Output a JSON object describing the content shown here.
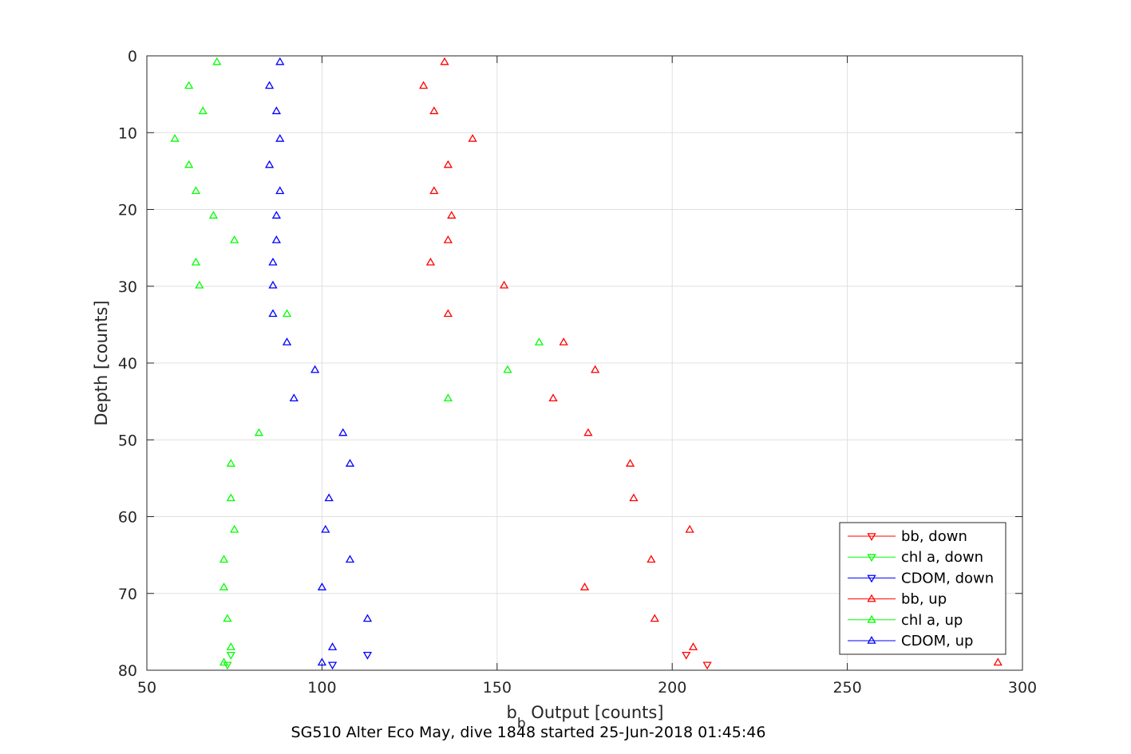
{
  "chart_data": {
    "type": "scatter",
    "xlabel_main": "b",
    "xlabel_sub": "b",
    "xlabel_rest": " Output [counts]",
    "ylabel": "Depth [counts]",
    "caption": "SG510 Alter Eco May, dive 1848 started 25-Jun-2018 01:45:46",
    "xlim": [
      50,
      300
    ],
    "ylim": [
      0,
      80
    ],
    "y_reversed": true,
    "xticks": [
      50,
      100,
      150,
      200,
      250,
      300
    ],
    "yticks": [
      0,
      10,
      20,
      30,
      40,
      50,
      60,
      70,
      80
    ],
    "grid": true,
    "legend_position": "bottom-right",
    "series": [
      {
        "name": "bb, down",
        "color": "#ff0000",
        "marker": "triangle-down",
        "points": [
          [
            204,
            78
          ],
          [
            210,
            79.3
          ]
        ]
      },
      {
        "name": "chl a, down",
        "color": "#00ff00",
        "marker": "triangle-down",
        "points": [
          [
            74,
            78
          ],
          [
            73,
            79.3
          ]
        ]
      },
      {
        "name": "CDOM, down",
        "color": "#0000ff",
        "marker": "triangle-down",
        "points": [
          [
            113,
            78
          ],
          [
            103,
            79.3
          ]
        ]
      },
      {
        "name": "bb, up",
        "color": "#ff0000",
        "marker": "triangle-up",
        "points": [
          [
            135,
            0.8
          ],
          [
            129,
            3.9
          ],
          [
            132,
            7.2
          ],
          [
            143,
            10.8
          ],
          [
            136,
            14.2
          ],
          [
            132,
            17.6
          ],
          [
            137,
            20.8
          ],
          [
            136,
            24
          ],
          [
            131,
            26.9
          ],
          [
            152,
            29.9
          ],
          [
            136,
            33.6
          ],
          [
            169,
            37.3
          ],
          [
            178,
            40.9
          ],
          [
            166,
            44.6
          ],
          [
            176,
            49.1
          ],
          [
            188,
            53.1
          ],
          [
            189,
            57.6
          ],
          [
            205,
            61.7
          ],
          [
            194,
            65.6
          ],
          [
            175,
            69.2
          ],
          [
            195,
            73.3
          ],
          [
            206,
            77
          ],
          [
            293,
            79
          ]
        ]
      },
      {
        "name": "chl a, up",
        "color": "#00ff00",
        "marker": "triangle-up",
        "points": [
          [
            70,
            0.8
          ],
          [
            62,
            3.9
          ],
          [
            66,
            7.2
          ],
          [
            58,
            10.8
          ],
          [
            62,
            14.2
          ],
          [
            64,
            17.6
          ],
          [
            69,
            20.8
          ],
          [
            75,
            24
          ],
          [
            64,
            26.9
          ],
          [
            65,
            29.9
          ],
          [
            90,
            33.6
          ],
          [
            162,
            37.3
          ],
          [
            153,
            40.9
          ],
          [
            136,
            44.6
          ],
          [
            82,
            49.1
          ],
          [
            74,
            53.1
          ],
          [
            74,
            57.6
          ],
          [
            75,
            61.7
          ],
          [
            72,
            65.6
          ],
          [
            72,
            69.2
          ],
          [
            73,
            73.3
          ],
          [
            74,
            77
          ],
          [
            72,
            79
          ]
        ]
      },
      {
        "name": "CDOM, up",
        "color": "#0000ff",
        "marker": "triangle-up",
        "points": [
          [
            88,
            0.8
          ],
          [
            85,
            3.9
          ],
          [
            87,
            7.2
          ],
          [
            88,
            10.8
          ],
          [
            85,
            14.2
          ],
          [
            88,
            17.6
          ],
          [
            87,
            20.8
          ],
          [
            87,
            24
          ],
          [
            86,
            26.9
          ],
          [
            86,
            29.9
          ],
          [
            86,
            33.6
          ],
          [
            90,
            37.3
          ],
          [
            98,
            40.9
          ],
          [
            92,
            44.6
          ],
          [
            106,
            49.1
          ],
          [
            108,
            53.1
          ],
          [
            102,
            57.6
          ],
          [
            101,
            61.7
          ],
          [
            108,
            65.6
          ],
          [
            100,
            69.2
          ],
          [
            113,
            73.3
          ],
          [
            103,
            77
          ],
          [
            100,
            79
          ]
        ]
      }
    ]
  }
}
